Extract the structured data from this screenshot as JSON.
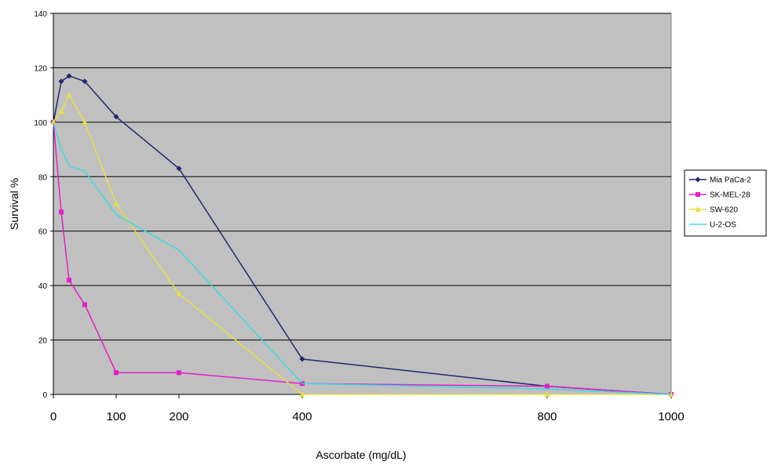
{
  "chart_data": {
    "type": "line",
    "title": "",
    "xlabel": "Ascorbate (mg/dL)",
    "ylabel": "Survival %",
    "ylim": [
      0,
      140
    ],
    "yticks": [
      0,
      20,
      40,
      60,
      80,
      100,
      120,
      140
    ],
    "xtick_labels": [
      "0",
      "100",
      "200",
      "400",
      "800",
      "1000"
    ],
    "grid": true,
    "legend_position": "right",
    "plot_background": "#c0c0c0",
    "series": [
      {
        "name": "Mia PaCa-2",
        "color": "#1f2a6b",
        "marker": "diamond",
        "x": [
          0,
          12.5,
          25,
          50,
          100,
          200,
          400,
          800,
          1000
        ],
        "y": [
          100,
          115,
          117,
          115,
          102,
          83,
          13,
          3,
          0
        ]
      },
      {
        "name": "SK-MEL-28",
        "color": "#e020c8",
        "marker": "square",
        "x": [
          0,
          12.5,
          25,
          50,
          100,
          200,
          400,
          800,
          1000
        ],
        "y": [
          100,
          67,
          42,
          33,
          8,
          8,
          4,
          3,
          0
        ]
      },
      {
        "name": "SW-620",
        "color": "#e8e040",
        "marker": "triangle",
        "x": [
          0,
          12.5,
          25,
          50,
          100,
          200,
          400,
          800,
          1000
        ],
        "y": [
          100,
          104,
          110,
          100,
          70,
          37,
          0,
          0,
          0
        ]
      },
      {
        "name": "U-2-OS",
        "color": "#40d8e0",
        "marker": "none",
        "x": [
          0,
          12.5,
          25,
          50,
          100,
          200,
          400,
          800,
          1000
        ],
        "y": [
          100,
          90,
          84,
          82,
          66,
          53,
          4,
          2,
          0
        ]
      }
    ]
  }
}
